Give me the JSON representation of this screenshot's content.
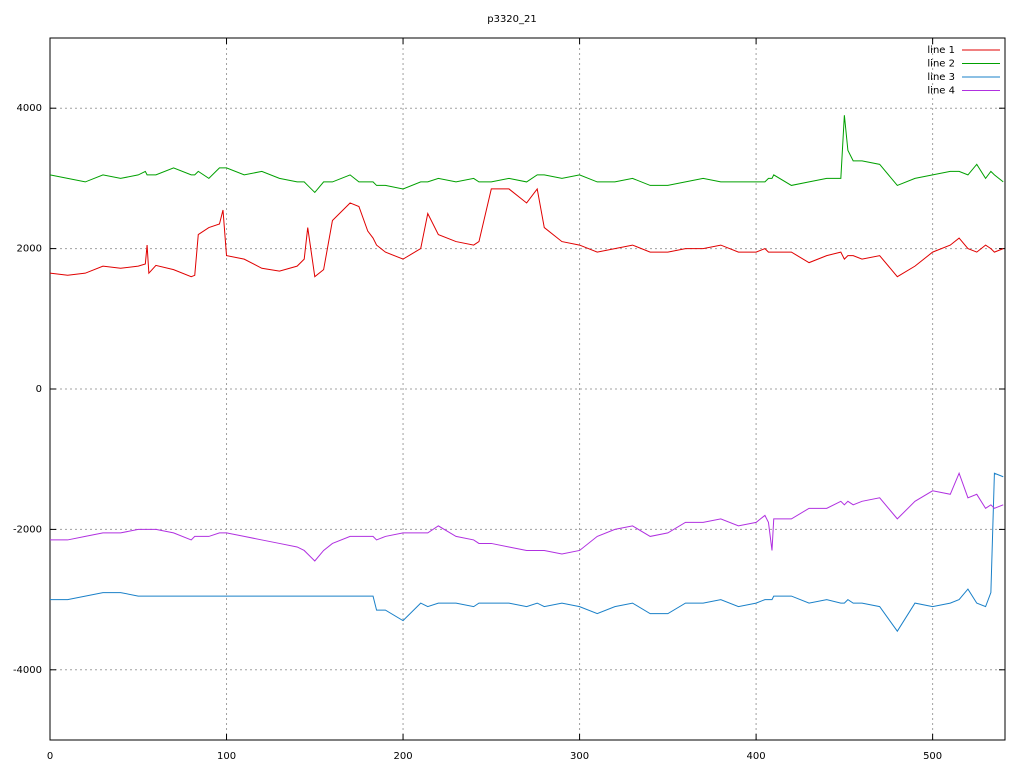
{
  "chart_data": {
    "type": "line",
    "title": "p3320_21",
    "x": [
      0,
      10,
      20,
      30,
      40,
      50,
      54,
      55,
      56,
      60,
      70,
      80,
      82,
      84,
      90,
      96,
      98,
      100,
      110,
      120,
      130,
      140,
      144,
      146,
      150,
      155,
      160,
      170,
      175,
      180,
      183,
      185,
      190,
      200,
      210,
      214,
      220,
      230,
      240,
      243,
      250,
      260,
      270,
      276,
      280,
      290,
      300,
      310,
      320,
      330,
      340,
      350,
      360,
      370,
      380,
      390,
      400,
      405,
      407,
      409,
      410,
      420,
      430,
      440,
      448,
      450,
      452,
      455,
      460,
      470,
      480,
      490,
      500,
      510,
      515,
      520,
      525,
      530,
      533,
      535,
      540
    ],
    "series": [
      {
        "name": "line 1",
        "color": "#e00000",
        "values": [
          1650,
          1620,
          1650,
          1750,
          1720,
          1750,
          1780,
          2050,
          1650,
          1760,
          1700,
          1600,
          1620,
          2200,
          2300,
          2350,
          2550,
          1900,
          1850,
          1720,
          1680,
          1750,
          1850,
          2300,
          1600,
          1700,
          2400,
          2650,
          2600,
          2250,
          2150,
          2050,
          1950,
          1850,
          2000,
          2500,
          2200,
          2100,
          2050,
          2100,
          2850,
          2850,
          2650,
          2850,
          2300,
          2100,
          2050,
          1950,
          2000,
          2050,
          1950,
          1950,
          2000,
          2000,
          2050,
          1950,
          1950,
          2000,
          1950,
          1950,
          1950,
          1950,
          1800,
          1900,
          1950,
          1850,
          1900,
          1900,
          1850,
          1900,
          1600,
          1750,
          1950,
          2050,
          2150,
          2000,
          1950,
          2050,
          2000,
          1950,
          2000
        ]
      },
      {
        "name": "line 2",
        "color": "#00a000",
        "values": [
          3050,
          3000,
          2950,
          3050,
          3000,
          3050,
          3100,
          3050,
          3050,
          3050,
          3150,
          3050,
          3050,
          3100,
          3000,
          3150,
          3150,
          3150,
          3050,
          3100,
          3000,
          2950,
          2950,
          2900,
          2800,
          2950,
          2950,
          3050,
          2950,
          2950,
          2950,
          2900,
          2900,
          2850,
          2950,
          2950,
          3000,
          2950,
          3000,
          2950,
          2950,
          3000,
          2950,
          3050,
          3050,
          3000,
          3050,
          2950,
          2950,
          3000,
          2900,
          2900,
          2950,
          3000,
          2950,
          2950,
          2950,
          2950,
          3000,
          3000,
          3050,
          2900,
          2950,
          3000,
          3000,
          3900,
          3400,
          3250,
          3250,
          3200,
          2900,
          3000,
          3050,
          3100,
          3100,
          3050,
          3200,
          3000,
          3100,
          3050,
          2950
        ]
      },
      {
        "name": "line 3",
        "color": "#1a80c8",
        "values": [
          -3000,
          -3000,
          -2950,
          -2900,
          -2900,
          -2950,
          -2950,
          -2950,
          -2950,
          -2950,
          -2950,
          -2950,
          -2950,
          -2950,
          -2950,
          -2950,
          -2950,
          -2950,
          -2950,
          -2950,
          -2950,
          -2950,
          -2950,
          -2950,
          -2950,
          -2950,
          -2950,
          -2950,
          -2950,
          -2950,
          -2950,
          -3150,
          -3150,
          -3300,
          -3050,
          -3100,
          -3050,
          -3050,
          -3100,
          -3050,
          -3050,
          -3050,
          -3100,
          -3050,
          -3100,
          -3050,
          -3100,
          -3200,
          -3100,
          -3050,
          -3200,
          -3200,
          -3050,
          -3050,
          -3000,
          -3100,
          -3050,
          -3000,
          -3000,
          -3000,
          -2950,
          -2950,
          -3050,
          -3000,
          -3050,
          -3050,
          -3000,
          -3050,
          -3050,
          -3100,
          -3450,
          -3050,
          -3100,
          -3050,
          -3000,
          -2850,
          -3050,
          -3100,
          -2900,
          -1200,
          -1250
        ]
      },
      {
        "name": "line 4",
        "color": "#b030e0",
        "values": [
          -2150,
          -2150,
          -2100,
          -2050,
          -2050,
          -2000,
          -2000,
          -2000,
          -2000,
          -2000,
          -2050,
          -2150,
          -2100,
          -2100,
          -2100,
          -2050,
          -2050,
          -2050,
          -2100,
          -2150,
          -2200,
          -2250,
          -2300,
          -2350,
          -2450,
          -2300,
          -2200,
          -2100,
          -2100,
          -2100,
          -2100,
          -2150,
          -2100,
          -2050,
          -2050,
          -2050,
          -1950,
          -2100,
          -2150,
          -2200,
          -2200,
          -2250,
          -2300,
          -2300,
          -2300,
          -2350,
          -2300,
          -2100,
          -2000,
          -1950,
          -2100,
          -2050,
          -1900,
          -1900,
          -1850,
          -1950,
          -1900,
          -1800,
          -1900,
          -2300,
          -1850,
          -1850,
          -1700,
          -1700,
          -1600,
          -1650,
          -1600,
          -1650,
          -1600,
          -1550,
          -1850,
          -1600,
          -1450,
          -1500,
          -1200,
          -1550,
          -1500,
          -1700,
          -1650,
          -1700,
          -1650
        ]
      }
    ],
    "xlim": [
      0,
      541
    ],
    "xticks": [
      0,
      100,
      200,
      300,
      400,
      500
    ],
    "ylim": [
      -5000,
      5000
    ],
    "yticks": [
      -4000,
      -2000,
      0,
      2000,
      4000
    ],
    "grid": true,
    "legend": "top-right"
  }
}
